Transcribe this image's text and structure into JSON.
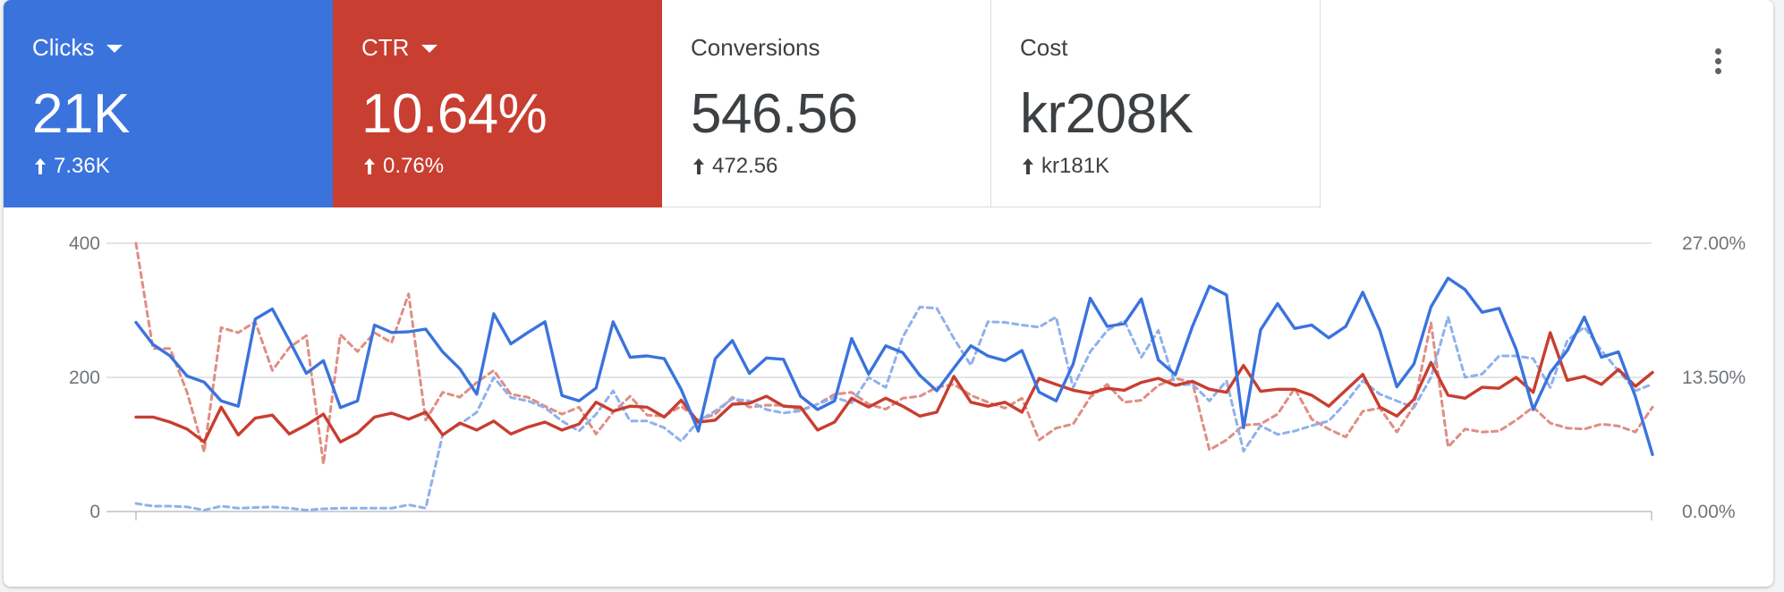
{
  "metrics": [
    {
      "label": "Clicks",
      "value": "21K",
      "delta": "7.36K",
      "color": "#3b73dd",
      "has_dropdown": true
    },
    {
      "label": "CTR",
      "value": "10.64%",
      "delta": "0.76%",
      "color": "#c83e30",
      "has_dropdown": true
    },
    {
      "label": "Conversions",
      "value": "546.56",
      "delta": "472.56",
      "has_dropdown": false
    },
    {
      "label": "Cost",
      "value": "kr208K",
      "delta": "kr181K",
      "has_dropdown": false
    }
  ],
  "icons": {
    "more": "more-vert-icon",
    "up_arrow": "arrow-up-icon",
    "dropdown": "dropdown-caret-icon"
  },
  "chart_data": {
    "type": "line",
    "grid": true,
    "y_left": {
      "ticks": [
        "400",
        "200",
        "0"
      ],
      "range": [
        0,
        400
      ]
    },
    "y_right": {
      "ticks": [
        "27.00%",
        "13.50%",
        "0.00%"
      ],
      "range": [
        0,
        27
      ]
    },
    "series": [
      {
        "metric": "Clicks",
        "period": "current",
        "axis": "left",
        "color": "#3b73dd",
        "style": "solid",
        "values": [
          282,
          249,
          232,
          202,
          193,
          165,
          157,
          287,
          302,
          255,
          206,
          225,
          155,
          165,
          278,
          267,
          268,
          272,
          238,
          213,
          175,
          295,
          250,
          267,
          283,
          173,
          165,
          184,
          283,
          230,
          232,
          228,
          182,
          120,
          228,
          255,
          206,
          229,
          227,
          172,
          152,
          165,
          258,
          205,
          247,
          237,
          203,
          180,
          214,
          247,
          232,
          225,
          240,
          178,
          165,
          220,
          318,
          276,
          280,
          317,
          226,
          204,
          276,
          336,
          323,
          125,
          271,
          310,
          273,
          278,
          259,
          276,
          327,
          270,
          186,
          220,
          305,
          348,
          331,
          297,
          303,
          242,
          152,
          207,
          240,
          290,
          230,
          238,
          171,
          85
        ]
      },
      {
        "metric": "CTR",
        "period": "current",
        "axis": "right",
        "color": "#c83e30",
        "style": "solid",
        "values": [
          9.5,
          9.5,
          9.0,
          8.3,
          7.0,
          10.5,
          7.7,
          9.4,
          9.7,
          7.8,
          8.7,
          9.8,
          7.0,
          7.9,
          9.5,
          9.9,
          9.3,
          10.0,
          7.7,
          8.9,
          8.2,
          9.1,
          7.8,
          8.5,
          9.0,
          8.2,
          8.8,
          11.0,
          10.1,
          10.6,
          10.5,
          9.5,
          11.2,
          9.0,
          9.2,
          10.8,
          10.9,
          11.6,
          10.6,
          10.5,
          8.2,
          9.0,
          11.4,
          10.5,
          11.4,
          10.6,
          9.6,
          10.0,
          13.6,
          11.0,
          10.6,
          11.0,
          10.0,
          13.4,
          12.8,
          12.2,
          11.9,
          12.4,
          12.2,
          13.0,
          13.4,
          12.7,
          13.1,
          12.3,
          12.0,
          14.7,
          12.1,
          12.3,
          12.3,
          11.7,
          10.6,
          12.2,
          13.8,
          10.5,
          9.6,
          11.3,
          15.0,
          11.7,
          11.4,
          12.5,
          12.4,
          13.5,
          12.0,
          18.0,
          13.2,
          13.6,
          12.8,
          14.3,
          12.6,
          14.0
        ]
      },
      {
        "metric": "Clicks",
        "period": "previous",
        "axis": "left",
        "color": "#8fb1ec",
        "style": "dashed",
        "values": [
          12,
          8,
          8,
          7,
          2,
          8,
          5,
          6,
          7,
          5,
          2,
          4,
          5,
          5,
          5,
          5,
          10,
          5,
          115,
          130,
          148,
          200,
          170,
          165,
          155,
          135,
          120,
          145,
          180,
          135,
          135,
          125,
          105,
          135,
          150,
          168,
          165,
          152,
          147,
          150,
          160,
          170,
          162,
          200,
          185,
          260,
          305,
          303,
          258,
          218,
          283,
          282,
          278,
          275,
          290,
          185,
          238,
          270,
          285,
          230,
          270,
          188,
          190,
          165,
          195,
          90,
          128,
          115,
          120,
          128,
          135,
          162,
          195,
          175,
          165,
          155,
          200,
          290,
          200,
          205,
          232,
          232,
          228,
          185,
          255,
          275,
          240,
          210,
          180,
          190
        ]
      },
      {
        "metric": "CTR",
        "period": "previous",
        "axis": "right",
        "color": "#df8e84",
        "style": "dashed",
        "values": [
          27.0,
          16.4,
          16.4,
          12.0,
          6.0,
          18.5,
          18.0,
          19.1,
          14.2,
          16.5,
          17.7,
          4.8,
          17.8,
          16.1,
          18.0,
          17.0,
          21.9,
          9.2,
          12.0,
          11.5,
          13.0,
          14.2,
          11.8,
          11.5,
          10.6,
          9.8,
          10.5,
          7.8,
          10.0,
          11.6,
          9.7,
          9.6,
          10.6,
          9.2,
          9.8,
          11.5,
          10.5,
          10.7,
          10.7,
          10.2,
          10.8,
          11.8,
          12.0,
          10.8,
          10.3,
          11.4,
          11.6,
          12.5,
          12.8,
          11.7,
          11.0,
          10.4,
          11.4,
          7.2,
          8.4,
          8.8,
          11.5,
          12.8,
          11.0,
          11.2,
          12.7,
          13.4,
          13.0,
          6.2,
          7.2,
          8.7,
          8.8,
          9.8,
          12.4,
          9.3,
          8.3,
          7.5,
          10.1,
          10.4,
          8.0,
          10.6,
          19.0,
          6.5,
          8.3,
          8.0,
          8.1,
          9.2,
          10.5,
          8.9,
          8.4,
          8.3,
          8.8,
          8.6,
          8.0,
          10.5
        ]
      }
    ]
  }
}
